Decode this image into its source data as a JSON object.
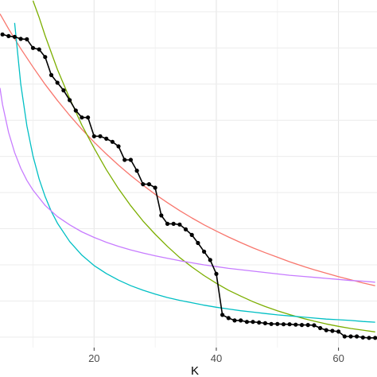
{
  "chart_data": {
    "type": "line",
    "title": "",
    "xlabel": "K",
    "ylabel": "",
    "xlim": [
      4.6,
      66.3
    ],
    "ylim": [
      0,
      1
    ],
    "xticks": [
      20,
      40,
      60
    ],
    "xtick_labels": [
      "20",
      "40",
      "60"
    ],
    "y_gridlines": [
      0.03,
      0.134,
      0.238,
      0.342,
      0.446,
      0.55,
      0.654,
      0.758,
      0.862,
      0.966
    ],
    "grid": true,
    "background": "#ffffff",
    "series": [
      {
        "kind": "observed",
        "color": "#000000",
        "marker": "point",
        "x": [
          5,
          6,
          7,
          8,
          9,
          10,
          11,
          12,
          13,
          14,
          15,
          16,
          17,
          18,
          19,
          20,
          21,
          22,
          23,
          24,
          25,
          26,
          27,
          28,
          29,
          30,
          31,
          32,
          33,
          34,
          35,
          36,
          37,
          38,
          39,
          40,
          41,
          42,
          43,
          44,
          45,
          46,
          47,
          48,
          49,
          50,
          51,
          52,
          53,
          54,
          55,
          56,
          57,
          58,
          59,
          60,
          61,
          62,
          63,
          64,
          65,
          66
        ],
        "y": [
          0.901,
          0.896,
          0.894,
          0.888,
          0.887,
          0.862,
          0.858,
          0.836,
          0.784,
          0.762,
          0.74,
          0.712,
          0.682,
          0.662,
          0.662,
          0.608,
          0.608,
          0.601,
          0.592,
          0.579,
          0.54,
          0.54,
          0.509,
          0.47,
          0.47,
          0.46,
          0.38,
          0.356,
          0.356,
          0.354,
          0.34,
          0.324,
          0.301,
          0.276,
          0.252,
          0.212,
          0.094,
          0.085,
          0.078,
          0.078,
          0.074,
          0.074,
          0.072,
          0.07,
          0.068,
          0.068,
          0.067,
          0.067,
          0.066,
          0.065,
          0.065,
          0.064,
          0.056,
          0.05,
          0.048,
          0.046,
          0.032,
          0.032,
          0.032,
          0.029,
          0.028,
          0.028
        ]
      },
      {
        "kind": "fitted",
        "color": "#f8766d",
        "x": [
          4.6,
          6,
          8,
          10,
          12,
          14,
          16,
          18,
          20,
          22,
          24,
          26,
          28,
          30,
          32,
          34,
          36,
          38,
          40,
          42,
          44,
          46,
          48,
          50,
          52,
          54,
          56,
          58,
          60,
          62,
          64,
          66
        ],
        "y": [
          0.96,
          0.917,
          0.86,
          0.807,
          0.757,
          0.711,
          0.668,
          0.628,
          0.591,
          0.557,
          0.525,
          0.495,
          0.467,
          0.441,
          0.417,
          0.394,
          0.373,
          0.353,
          0.335,
          0.318,
          0.302,
          0.287,
          0.273,
          0.26,
          0.247,
          0.235,
          0.224,
          0.214,
          0.204,
          0.195,
          0.186,
          0.178
        ]
      },
      {
        "kind": "fitted",
        "color": "#7cae00",
        "x": [
          10,
          11,
          12,
          14,
          16,
          18,
          20,
          22,
          24,
          26,
          28,
          30,
          32,
          34,
          36,
          38,
          40,
          42,
          44,
          46,
          48,
          50,
          52,
          54,
          56,
          58,
          60,
          62,
          64,
          66
        ],
        "y": [
          0.998,
          0.95,
          0.897,
          0.8,
          0.717,
          0.64,
          0.574,
          0.512,
          0.457,
          0.408,
          0.364,
          0.326,
          0.291,
          0.259,
          0.232,
          0.207,
          0.185,
          0.165,
          0.148,
          0.132,
          0.118,
          0.106,
          0.095,
          0.085,
          0.076,
          0.068,
          0.061,
          0.055,
          0.05,
          0.045
        ]
      },
      {
        "kind": "fitted",
        "color": "#00bfc4",
        "x": [
          7,
          8,
          9,
          10,
          11,
          12,
          13,
          14,
          16,
          18,
          20,
          22,
          24,
          26,
          28,
          30,
          32,
          34,
          36,
          38,
          40,
          42,
          44,
          46,
          48,
          50,
          52,
          54,
          56,
          58,
          60,
          62,
          64,
          66
        ],
        "y": [
          0.934,
          0.758,
          0.638,
          0.551,
          0.485,
          0.434,
          0.392,
          0.358,
          0.305,
          0.266,
          0.236,
          0.213,
          0.194,
          0.178,
          0.165,
          0.154,
          0.144,
          0.136,
          0.129,
          0.122,
          0.116,
          0.111,
          0.106,
          0.102,
          0.098,
          0.094,
          0.091,
          0.088,
          0.085,
          0.082,
          0.08,
          0.078,
          0.075,
          0.073
        ]
      },
      {
        "kind": "fitted",
        "color": "#c77cff",
        "x": [
          4.6,
          5,
          6,
          7,
          8,
          9,
          10,
          12,
          14,
          16,
          18,
          20,
          22,
          24,
          26,
          28,
          30,
          32,
          34,
          36,
          38,
          40,
          42,
          44,
          46,
          48,
          50,
          52,
          54,
          56,
          58,
          60,
          62,
          64,
          66
        ],
        "y": [
          0.747,
          0.7,
          0.619,
          0.561,
          0.516,
          0.481,
          0.453,
          0.409,
          0.377,
          0.353,
          0.333,
          0.317,
          0.303,
          0.291,
          0.281,
          0.272,
          0.264,
          0.257,
          0.25,
          0.244,
          0.238,
          0.233,
          0.228,
          0.224,
          0.22,
          0.216,
          0.212,
          0.208,
          0.205,
          0.202,
          0.199,
          0.196,
          0.193,
          0.191,
          0.188
        ]
      }
    ]
  }
}
